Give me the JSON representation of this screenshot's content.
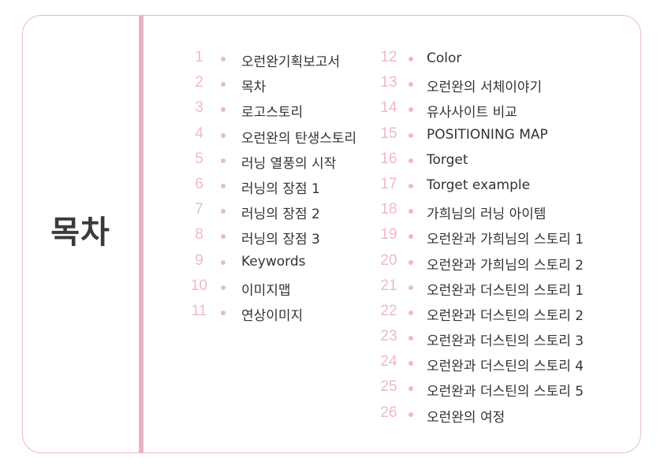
{
  "title": "목차",
  "column_left": [
    {
      "num": "1",
      "label": "오런완기획보고서"
    },
    {
      "num": "2",
      "label": "목차"
    },
    {
      "num": "3",
      "label": "로고스토리"
    },
    {
      "num": "4",
      "label": "오런완의 탄생스토리"
    },
    {
      "num": "5",
      "label": "러닝 열풍의 시작"
    },
    {
      "num": "6",
      "label": "러닝의 장점 1"
    },
    {
      "num": "7",
      "label": "러닝의 장점 2"
    },
    {
      "num": "8",
      "label": "러닝의 장점 3"
    },
    {
      "num": "9",
      "label": "Keywords"
    },
    {
      "num": "10",
      "label": "이미지맵"
    },
    {
      "num": "11",
      "label": "연상이미지"
    }
  ],
  "column_right": [
    {
      "num": "12",
      "label": "Color"
    },
    {
      "num": "13",
      "label": "오런완의 서체이야기"
    },
    {
      "num": "14",
      "label": "유사사이트 비교"
    },
    {
      "num": "15",
      "label": "POSITIONING MAP"
    },
    {
      "num": "16",
      "label": "Torget"
    },
    {
      "num": "17",
      "label": "Torget example"
    },
    {
      "num": "18",
      "label": "가희님의 러닝 아이템"
    },
    {
      "num": "19",
      "label": "오런완과 가희님의 스토리 1"
    },
    {
      "num": "20",
      "label": "오런완과 가희님의 스토리 2"
    },
    {
      "num": "21",
      "label": "오런완과 더스틴의 스토리 1"
    },
    {
      "num": "22",
      "label": "오런완과 더스틴의 스토리 2"
    },
    {
      "num": "23",
      "label": "오런완과 더스틴의 스토리 3"
    },
    {
      "num": "24",
      "label": "오런완과 더스틴의 스토리 4"
    },
    {
      "num": "25",
      "label": "오런완과 더스틴의 스토리 5"
    },
    {
      "num": "26",
      "label": "오런완의 여정"
    }
  ],
  "colors": {
    "accent": "#e5b5c6",
    "number": "#efb8cb",
    "text": "#333333"
  }
}
